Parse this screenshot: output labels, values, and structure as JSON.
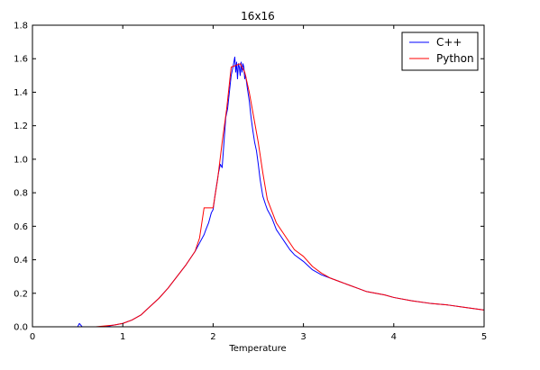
{
  "chart_data": {
    "type": "line",
    "title": "16x16",
    "xlabel": "Temperature",
    "ylabel": "",
    "xlim": [
      0,
      5
    ],
    "ylim": [
      0,
      1.8
    ],
    "xticks": [
      "0",
      "1",
      "2",
      "3",
      "4",
      "5"
    ],
    "yticks": [
      "0.0",
      "0.2",
      "0.4",
      "0.6",
      "0.8",
      "1.0",
      "1.2",
      "1.4",
      "1.6",
      "1.8"
    ],
    "grid": false,
    "legend_position": "top-right",
    "series": [
      {
        "name": "C++",
        "color": "#0000ff",
        "x": [
          0.3,
          0.5,
          0.52,
          0.55,
          0.6,
          0.7,
          0.8,
          0.9,
          1.0,
          1.1,
          1.2,
          1.3,
          1.4,
          1.5,
          1.6,
          1.7,
          1.8,
          1.85,
          1.9,
          1.92,
          1.95,
          1.98,
          2.0,
          2.02,
          2.04,
          2.06,
          2.08,
          2.1,
          2.12,
          2.14,
          2.16,
          2.18,
          2.2,
          2.22,
          2.24,
          2.25,
          2.26,
          2.27,
          2.28,
          2.29,
          2.3,
          2.31,
          2.32,
          2.33,
          2.34,
          2.35,
          2.36,
          2.38,
          2.4,
          2.42,
          2.44,
          2.46,
          2.48,
          2.5,
          2.52,
          2.55,
          2.58,
          2.6,
          2.65,
          2.7,
          2.75,
          2.8,
          2.85,
          2.9,
          3.0,
          3.1,
          3.2,
          3.3,
          3.4,
          3.5,
          3.6,
          3.7,
          3.8,
          3.9,
          4.0,
          4.2,
          4.4,
          4.6,
          4.8,
          5.0
        ],
        "y": [
          0.0,
          0.0,
          0.02,
          0.0,
          0.0,
          0.0,
          0.0,
          0.01,
          0.02,
          0.04,
          0.07,
          0.12,
          0.17,
          0.23,
          0.3,
          0.37,
          0.45,
          0.5,
          0.55,
          0.58,
          0.62,
          0.68,
          0.7,
          0.78,
          0.85,
          0.92,
          0.97,
          0.95,
          1.1,
          1.25,
          1.3,
          1.4,
          1.5,
          1.55,
          1.61,
          1.52,
          1.58,
          1.48,
          1.57,
          1.55,
          1.5,
          1.58,
          1.52,
          1.57,
          1.55,
          1.48,
          1.5,
          1.42,
          1.35,
          1.25,
          1.17,
          1.1,
          1.05,
          0.97,
          0.88,
          0.78,
          0.73,
          0.7,
          0.65,
          0.58,
          0.54,
          0.5,
          0.46,
          0.43,
          0.39,
          0.34,
          0.31,
          0.29,
          0.27,
          0.25,
          0.23,
          0.21,
          0.2,
          0.19,
          0.175,
          0.155,
          0.14,
          0.13,
          0.115,
          0.1
        ]
      },
      {
        "name": "Python",
        "color": "#ff0000",
        "x": [
          0.3,
          0.5,
          0.7,
          0.9,
          1.0,
          1.1,
          1.2,
          1.3,
          1.4,
          1.5,
          1.6,
          1.7,
          1.8,
          1.85,
          1.9,
          1.95,
          2.0,
          2.05,
          2.1,
          2.15,
          2.2,
          2.25,
          2.3,
          2.35,
          2.4,
          2.45,
          2.5,
          2.55,
          2.6,
          2.65,
          2.7,
          2.8,
          2.9,
          3.0,
          3.1,
          3.2,
          3.3,
          3.4,
          3.5,
          3.6,
          3.7,
          3.8,
          3.9,
          4.0,
          4.2,
          4.4,
          4.6,
          4.8,
          5.0
        ],
        "y": [
          0.0,
          0.0,
          0.0,
          0.01,
          0.02,
          0.04,
          0.07,
          0.12,
          0.17,
          0.23,
          0.3,
          0.37,
          0.45,
          0.53,
          0.71,
          0.71,
          0.71,
          0.88,
          1.1,
          1.3,
          1.55,
          1.56,
          1.57,
          1.52,
          1.4,
          1.25,
          1.1,
          0.92,
          0.76,
          0.69,
          0.62,
          0.54,
          0.46,
          0.42,
          0.36,
          0.32,
          0.29,
          0.27,
          0.25,
          0.23,
          0.21,
          0.2,
          0.19,
          0.175,
          0.155,
          0.14,
          0.13,
          0.115,
          0.1
        ]
      }
    ]
  }
}
